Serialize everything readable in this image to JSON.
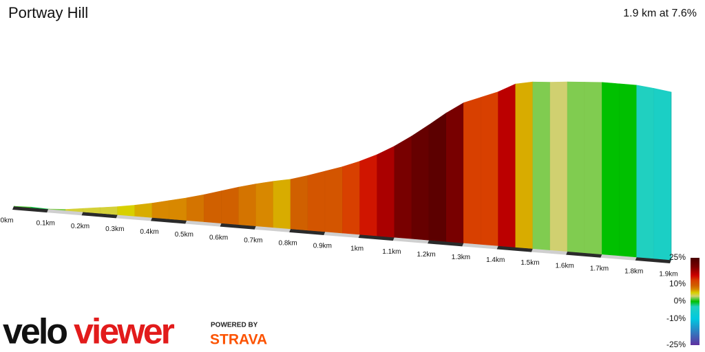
{
  "chart_data": {
    "type": "gradient-profile",
    "title": "Portway Hill",
    "subtitle": "1.9 km at 7.6%",
    "x": [
      0,
      0.05,
      0.1,
      0.15,
      0.2,
      0.25,
      0.3,
      0.35,
      0.4,
      0.45,
      0.5,
      0.55,
      0.6,
      0.65,
      0.7,
      0.75,
      0.8,
      0.85,
      0.9,
      0.95,
      1.0,
      1.05,
      1.1,
      1.15,
      1.2,
      1.25,
      1.3,
      1.35,
      1.4,
      1.45,
      1.5,
      1.55,
      1.6,
      1.65,
      1.7,
      1.75,
      1.8,
      1.85
    ],
    "series": [
      {
        "values": [
          1,
          -1,
          2,
          4,
          4,
          4,
          5,
          6,
          7,
          7,
          8,
          9,
          9,
          8,
          7,
          6,
          9,
          10,
          10,
          12,
          14,
          17,
          20,
          22,
          23,
          20,
          12,
          12,
          16,
          6,
          2,
          3,
          2,
          2,
          0,
          0,
          -3,
          -4
        ]
      }
    ],
    "xlim": [
      0,
      1.9
    ],
    "xticks": [
      {
        "value": 0,
        "label": "0km"
      },
      {
        "value": 0.1,
        "label": "0.1km"
      },
      {
        "value": 0.2,
        "label": "0.2km"
      },
      {
        "value": 0.3,
        "label": "0.3km"
      },
      {
        "value": 0.4,
        "label": "0.4km"
      },
      {
        "value": 0.5,
        "label": "0.5km"
      },
      {
        "value": 0.6,
        "label": "0.6km"
      },
      {
        "value": 0.7,
        "label": "0.7km"
      },
      {
        "value": 0.8,
        "label": "0.8km"
      },
      {
        "value": 0.9,
        "label": "0.9km"
      },
      {
        "value": 1.0,
        "label": "1km"
      },
      {
        "value": 1.1,
        "label": "1.1km"
      },
      {
        "value": 1.2,
        "label": "1.2km"
      },
      {
        "value": 1.3,
        "label": "1.3km"
      },
      {
        "value": 1.4,
        "label": "1.4km"
      },
      {
        "value": 1.5,
        "label": "1.5km"
      },
      {
        "value": 1.6,
        "label": "1.6km"
      },
      {
        "value": 1.7,
        "label": "1.7km"
      },
      {
        "value": 1.8,
        "label": "1.8km"
      },
      {
        "value": 1.9,
        "label": "1.9km"
      }
    ],
    "colorbar_lim": [
      -25,
      25
    ],
    "colorbar_ticks": [
      {
        "value": 25,
        "label": "25%"
      },
      {
        "value": 10,
        "label": "10%"
      },
      {
        "value": 0,
        "label": "0%"
      },
      {
        "value": -10,
        "label": "-10%"
      },
      {
        "value": -25,
        "label": "-25%"
      }
    ],
    "color_scale": [
      {
        "value": 25,
        "color": "#4a0000"
      },
      {
        "value": 20,
        "color": "#780000"
      },
      {
        "value": 15,
        "color": "#cc0000"
      },
      {
        "value": 12,
        "color": "#d84000"
      },
      {
        "value": 9,
        "color": "#d06000"
      },
      {
        "value": 7,
        "color": "#d88800"
      },
      {
        "value": 5,
        "color": "#d8d000"
      },
      {
        "value": 3,
        "color": "#d0d070"
      },
      {
        "value": 2,
        "color": "#80cc50"
      },
      {
        "value": 0,
        "color": "#00c000"
      },
      {
        "value": -3,
        "color": "#20d0c0"
      },
      {
        "value": -10,
        "color": "#00c8e0"
      },
      {
        "value": -25,
        "color": "#6030a0"
      }
    ]
  },
  "logo": {
    "part1": "velo",
    "part2": "viewer",
    "powered": "POWERED BY",
    "strava": "STRAVA"
  }
}
